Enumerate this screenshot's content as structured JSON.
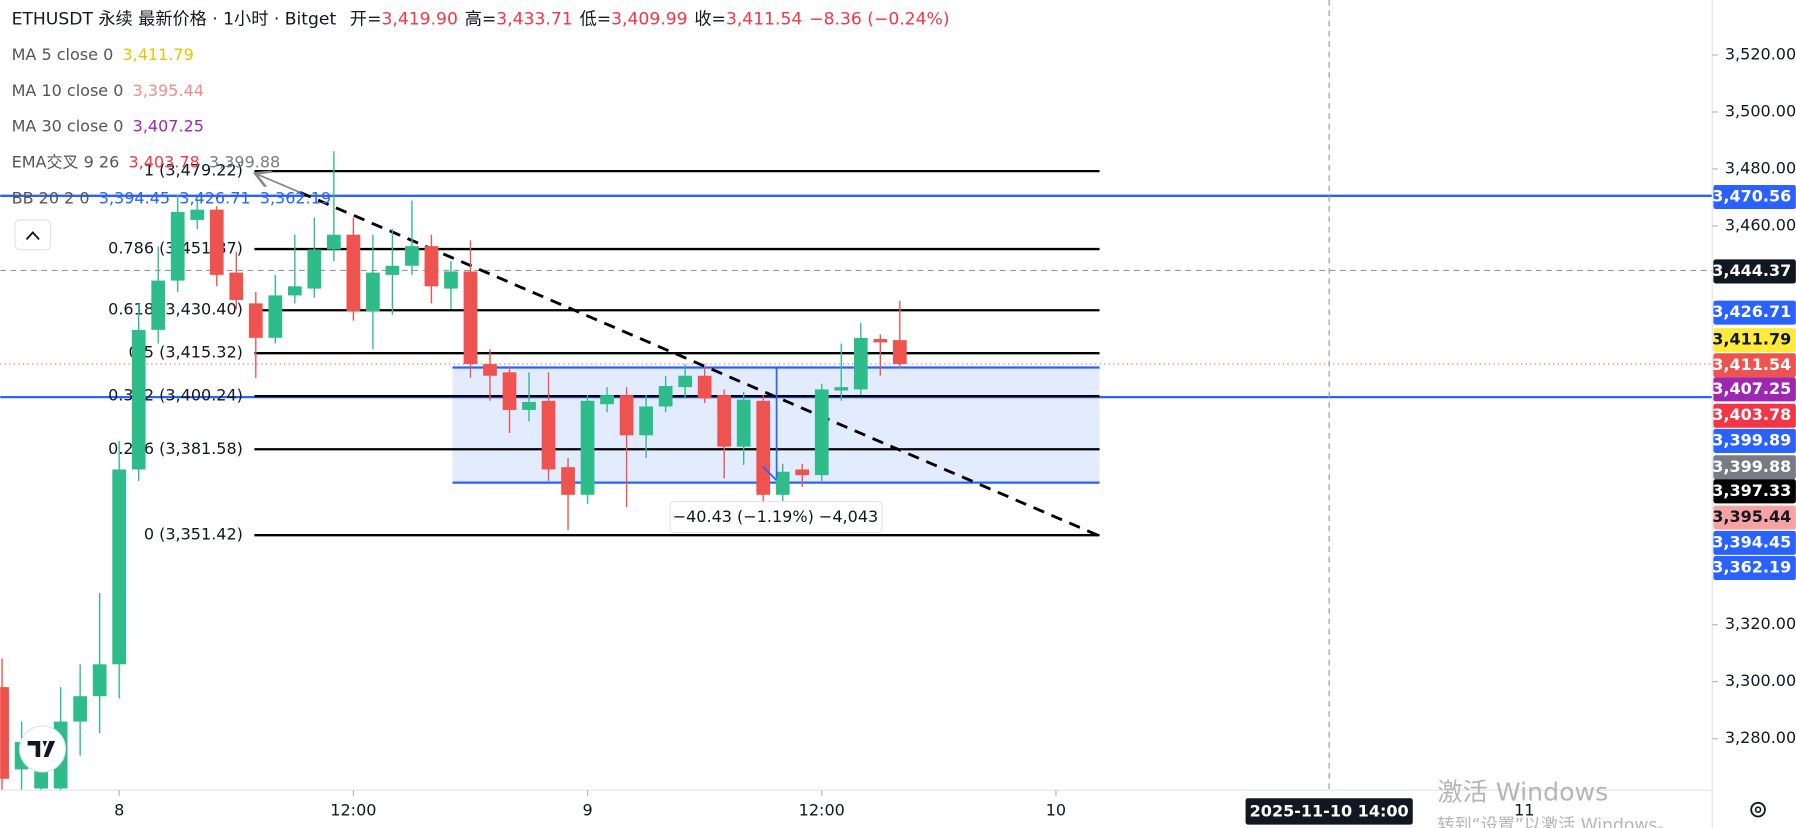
{
  "header": {
    "symbol": "ETHUSDT 永续 最新价格 · 1小时 · Bitget",
    "ohlc": [
      {
        "label": "开=",
        "value": "3,419.90"
      },
      {
        "label": "高=",
        "value": "3,433.71"
      },
      {
        "label": "低=",
        "value": "3,409.99"
      },
      {
        "label": "收=",
        "value": "3,411.54"
      }
    ],
    "change": "−8.36 (−0.24%)"
  },
  "indicators": [
    {
      "name": "MA 5 close 0",
      "values": [
        {
          "text": "3,411.79",
          "color": "#e5c400"
        }
      ]
    },
    {
      "name": "MA 10 close 0",
      "values": [
        {
          "text": "3,395.44",
          "color": "#f28b8b"
        }
      ]
    },
    {
      "name": "MA 30 close 0",
      "values": [
        {
          "text": "3,407.25",
          "color": "#9c27b0"
        }
      ]
    },
    {
      "name": "EMA交叉 9 26",
      "values": [
        {
          "text": "3,403.78",
          "color": "#f23645"
        },
        {
          "text": "3,399.88",
          "color": "#787b86"
        }
      ]
    },
    {
      "name": "BB 20 2 0",
      "values": [
        {
          "text": "3,394.45",
          "color": "#2962ff"
        },
        {
          "text": "3,426.71",
          "color": "#2962ff"
        },
        {
          "text": "3,362.19",
          "color": "#2962ff"
        }
      ]
    }
  ],
  "chart_data": {
    "type": "candlestick",
    "up_color": "#2ebd8a",
    "down_color": "#ef5350",
    "x": [
      -6,
      -5,
      -4,
      -3,
      -2,
      -1,
      0,
      1,
      2,
      3,
      4,
      5,
      6,
      7,
      8,
      9,
      10,
      11,
      12,
      13,
      14,
      15,
      16,
      17,
      18,
      19,
      20,
      21,
      22,
      23,
      24,
      25,
      26,
      27,
      28,
      29,
      30,
      31,
      32,
      33,
      34,
      35,
      36,
      37,
      38,
      39,
      40
    ],
    "open": [
      3298.1,
      3269.2,
      3262.5,
      3262.5,
      3286.0,
      3294.9,
      3306.1,
      3374.5,
      3423.5,
      3440.8,
      3462.1,
      3465.7,
      3443.6,
      3432.8,
      3420.7,
      3435.6,
      3438.0,
      3451.7,
      3456.9,
      3430.0,
      3442.8,
      3446.0,
      3452.9,
      3438.0,
      3444.0,
      3411.5,
      3408.6,
      3395.4,
      3398.6,
      3375.3,
      3365.6,
      3397.4,
      3400.6,
      3386.5,
      3396.6,
      3403.4,
      3407.4,
      3400.6,
      3382.5,
      3398.6,
      3365.6,
      3374.5,
      3372.5,
      3402.2,
      3402.6,
      3420.3,
      3419.9
    ],
    "high": [
      3308.1,
      3286.0,
      3274.0,
      3298.1,
      3306.1,
      3331.1,
      3384.5,
      3432.8,
      3452.9,
      3471.0,
      3468.9,
      3466.9,
      3450.9,
      3436.8,
      3442.8,
      3456.9,
      3462.9,
      3486.2,
      3462.9,
      3456.9,
      3458.9,
      3468.9,
      3456.9,
      3447.6,
      3454.9,
      3416.7,
      3410.7,
      3408.6,
      3408.6,
      3378.5,
      3400.6,
      3403.4,
      3403.4,
      3400.6,
      3407.4,
      3411.5,
      3410.7,
      3402.6,
      3401.8,
      3400.6,
      3376.5,
      3376.5,
      3404.6,
      3418.7,
      3425.9,
      3421.9,
      3433.71
    ],
    "low": [
      3261.9,
      3261.9,
      3261.9,
      3261.9,
      3274.0,
      3282.0,
      3294.1,
      3370.5,
      3418.7,
      3436.8,
      3458.9,
      3438.8,
      3430.8,
      3406.6,
      3418.7,
      3432.8,
      3434.8,
      3447.6,
      3426.7,
      3416.7,
      3428.7,
      3442.8,
      3432.8,
      3430.8,
      3406.6,
      3398.6,
      3387.3,
      3391.4,
      3370.5,
      3353.2,
      3362.4,
      3394.6,
      3361.2,
      3378.5,
      3394.6,
      3399.4,
      3397.8,
      3371.3,
      3376.1,
      3362.4,
      3360.4,
      3368.4,
      3370.5,
      3398.6,
      3400.6,
      3407.4,
      3409.99
    ],
    "close": [
      3265.9,
      3278.8,
      3270.0,
      3286.0,
      3294.9,
      3306.1,
      3374.5,
      3423.5,
      3440.8,
      3464.9,
      3465.7,
      3442.8,
      3434.0,
      3420.7,
      3435.6,
      3438.8,
      3451.7,
      3456.9,
      3430.0,
      3443.6,
      3446.0,
      3452.9,
      3438.8,
      3444.0,
      3411.5,
      3407.4,
      3395.4,
      3398.2,
      3374.5,
      3365.6,
      3398.6,
      3400.6,
      3386.5,
      3396.6,
      3403.8,
      3407.4,
      3399.4,
      3382.5,
      3399.0,
      3365.6,
      3373.7,
      3372.5,
      3402.6,
      3403.4,
      3420.7,
      3419.1,
      3411.54
    ],
    "xlim": [
      -6.1,
      81.63
    ],
    "xticks": [
      {
        "value": 0,
        "label": "8"
      },
      {
        "value": 12,
        "label": "12:00"
      },
      {
        "value": 24,
        "label": "9"
      },
      {
        "value": 36,
        "label": "12:00"
      },
      {
        "value": 48,
        "label": "10"
      },
      {
        "value": 72,
        "label": "11"
      }
    ],
    "ylim": [
      3261.9,
      3539.3
    ],
    "yticks": [
      {
        "value": 3520,
        "label": "3,520.00"
      },
      {
        "value": 3500,
        "label": "3,500.00"
      },
      {
        "value": 3480,
        "label": "3,480.00"
      },
      {
        "value": 3460,
        "label": "3,460.00"
      },
      {
        "value": 3320,
        "label": "3,320.00"
      },
      {
        "value": 3300,
        "label": "3,300.00"
      },
      {
        "value": 3280,
        "label": "3,280.00"
      }
    ],
    "fib_levels": [
      {
        "label": "1 (3,479.22)",
        "value": 3479.22
      },
      {
        "label": "0.786 (3,451.87)",
        "value": 3451.87
      },
      {
        "label": "0.618 (3,430.40)",
        "value": 3430.4
      },
      {
        "label": "0.5 (3,415.32)",
        "value": 3415.32
      },
      {
        "label": "0.382 (3,400.24)",
        "value": 3400.24
      },
      {
        "label": "0.236 (3,381.58)",
        "value": 3381.58
      },
      {
        "label": "0 (3,351.42)",
        "value": 3351.42
      }
    ],
    "horizontal_lines": [
      {
        "value": 3470.56,
        "color": "#2962ff"
      },
      {
        "value": 3399.89,
        "color": "#2962ff"
      }
    ],
    "range_box": {
      "top": 3410.3,
      "bottom": 3369.87,
      "label": "−40.43 (−1.19%) −4,043"
    },
    "crosshair": {
      "x": {
        "value": 62,
        "label": "2025-11-10  14:00"
      },
      "y": {
        "value": 3444.37,
        "label": "3,444.37"
      }
    },
    "price_badges": [
      {
        "text": "3,470.56",
        "bg": "#2962ff",
        "fg": "#ffffff"
      },
      {
        "text": "3,444.37",
        "bg": "#131722",
        "fg": "#ffffff"
      },
      {
        "text": "3,426.71",
        "bg": "#2962ff",
        "fg": "#ffffff"
      },
      {
        "text": "3,411.79",
        "bg": "#ffeb3b",
        "fg": "#131722"
      },
      {
        "text": "3,411.54",
        "bg": "#ef5350",
        "fg": "#ffffff"
      },
      {
        "text": "3,407.25",
        "bg": "#9c27b0",
        "fg": "#ffffff"
      },
      {
        "text": "3,403.78",
        "bg": "#f23645",
        "fg": "#ffffff"
      },
      {
        "text": "3,399.89",
        "bg": "#2962ff",
        "fg": "#ffffff"
      },
      {
        "text": "3,399.88",
        "bg": "#787b86",
        "fg": "#ffffff"
      },
      {
        "text": "3,397.33",
        "bg": "#000000",
        "fg": "#ffffff"
      },
      {
        "text": "3,395.44",
        "bg": "#f5a3a3",
        "fg": "#131722"
      },
      {
        "text": "3,394.45",
        "bg": "#2962ff",
        "fg": "#ffffff"
      },
      {
        "text": "3,362.19",
        "bg": "#2962ff",
        "fg": "#ffffff"
      }
    ]
  },
  "watermark": [
    "激活 Windows",
    "转到“设置”以激活 Windows。"
  ]
}
